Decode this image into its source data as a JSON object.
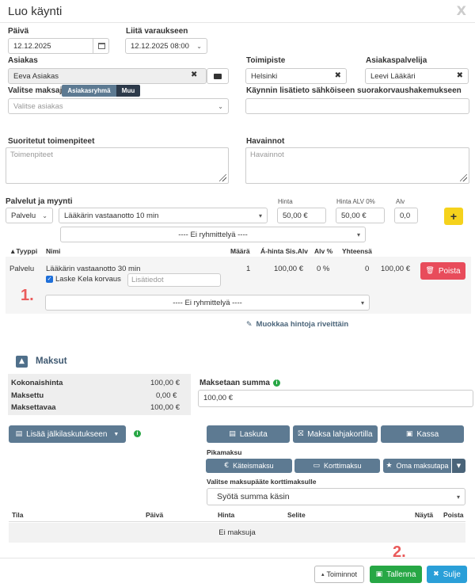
{
  "modal": {
    "title": "Luo käynti",
    "close": "X"
  },
  "form": {
    "date_label": "Päivä",
    "date_value": "12.12.2025",
    "link_label": "Liitä varaukseen",
    "link_value": "12.12.2025 08:00",
    "customer_label": "Asiakas",
    "customer_value": "Eeva Asiakas",
    "office_label": "Toimipiste",
    "office_value": "Helsinki",
    "provider_label": "Asiakaspalvelija",
    "provider_value": "Leevi Lääkäri",
    "payer_label": "Valitse maksaja",
    "payer_toggle": [
      "Asiakasryhmä",
      "Muu"
    ],
    "payer_placeholder": "Valitse asiakas",
    "kela_label": "Käynnin lisätieto sähköiseen suorakorvaushakemukseen",
    "procedures_label": "Suoritetut toimenpiteet",
    "procedures_placeholder": "Toimenpiteet",
    "observations_label": "Havainnot",
    "observations_placeholder": "Havainnot"
  },
  "services": {
    "title": "Palvelut ja myynti",
    "type_value": "Palvelu",
    "service_value": "Lääkärin vastaanotto 10 min",
    "price_label": "Hinta",
    "price_value": "50,00 €",
    "price_vat_label": "Hinta ALV 0%",
    "price_vat_value": "50,00 €",
    "vat_label": "Alv",
    "vat_value": "0,0",
    "add_label": "+",
    "group_value": "---- Ei ryhmittelyä ----",
    "columns": [
      "▲Tyyppi",
      "Nimi",
      "Määrä",
      "Á-hinta Sis.Alv",
      "Alv %",
      "Yhteensä"
    ],
    "row": {
      "type": "Palvelu",
      "name": "Lääkärin vastaanotto 30 min",
      "qty": "1",
      "unit_price": "100,00 €",
      "vat": "0 %",
      "zero": "0",
      "total": "100,00 €",
      "kela_check": "Laske Kela korvaus",
      "extra_placeholder": "Lisätiedot",
      "group_value": "---- Ei ryhmittelyä ----",
      "delete_label": "Poista"
    },
    "edit_rows_label": "Muokkaa hintoja riveittäin"
  },
  "payments": {
    "title": "Maksut",
    "summary": [
      {
        "label": "Kokonaishinta",
        "value": "100,00 €"
      },
      {
        "label": "Maksettu",
        "value": "0,00 €"
      },
      {
        "label": "Maksettavaa",
        "value": "100,00 €"
      }
    ],
    "amount_label": "Maksetaan summa",
    "amount_value": "100,00 €",
    "add_invoice_label": "Lisää jälkilaskutukseen",
    "invoice_label": "Laskuta",
    "giftcard_label": "Maksa lahjakortilla",
    "cashier_label": "Kassa",
    "quick_label": "Pikamaksu",
    "cash_label": "Käteismaksu",
    "card_label": "Korttimaksu",
    "own_label": "Oma maksutapa",
    "terminal_label": "Valitse maksupääte korttimaksulle",
    "terminal_value": "Syötä summa käsin",
    "table_columns": [
      "Tila",
      "Päivä",
      "Hinta",
      "Selite",
      "Näytä",
      "Poista"
    ],
    "empty": "Ei maksuja"
  },
  "footer": {
    "actions_label": "Toiminnot",
    "save_label": "Tallenna",
    "close_label": "Sulje"
  },
  "annotations": {
    "one": "1.",
    "two": "2."
  },
  "colors": {
    "slate": "#5d7a92",
    "danger": "#e84c5b",
    "success": "#27a745",
    "info": "#2a9fd8",
    "warning": "#f5d21c",
    "annotation": "#ea5b5b"
  }
}
